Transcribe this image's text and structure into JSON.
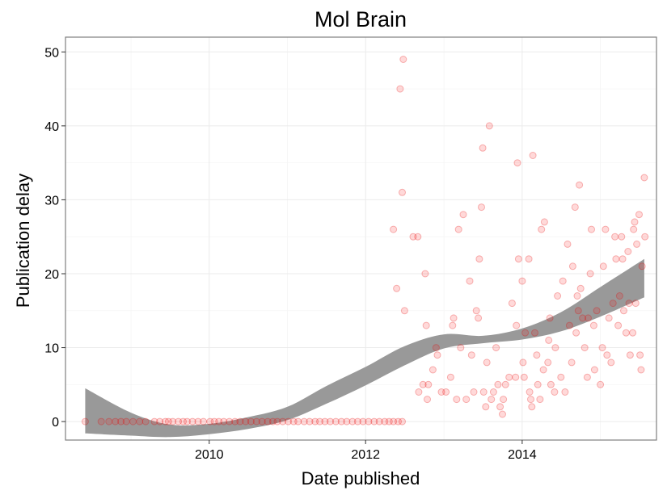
{
  "chart_data": {
    "type": "scatter",
    "title": "Mol Brain",
    "xlabel": "Date published",
    "ylabel": "Publication delay",
    "xlim": [
      "2008-03-01",
      "2015-09-20"
    ],
    "ylim": [
      -2.5,
      52
    ],
    "x_ticks": [
      {
        "date": "2010-01-01",
        "label": "2010"
      },
      {
        "date": "2012-01-01",
        "label": "2012"
      },
      {
        "date": "2014-01-01",
        "label": "2014"
      }
    ],
    "y_ticks": [
      0,
      10,
      20,
      30,
      40,
      50
    ],
    "grid": true,
    "point_color": "#ff0000",
    "band_color": "#999999",
    "series": [
      {
        "type": "scatter",
        "points": [
          [
            "2008-06-01",
            0
          ],
          [
            "2008-08-15",
            0
          ],
          [
            "2008-09-20",
            0
          ],
          [
            "2008-10-20",
            0
          ],
          [
            "2008-11-15",
            0
          ],
          [
            "2008-12-10",
            0
          ],
          [
            "2009-01-10",
            0
          ],
          [
            "2009-02-10",
            0
          ],
          [
            "2009-03-10",
            0
          ],
          [
            "2009-04-20",
            0
          ],
          [
            "2009-05-15",
            0
          ],
          [
            "2009-06-10",
            0
          ],
          [
            "2009-06-25",
            0
          ],
          [
            "2009-07-15",
            0
          ],
          [
            "2009-08-10",
            0
          ],
          [
            "2009-09-01",
            0
          ],
          [
            "2009-09-20",
            0
          ],
          [
            "2009-10-15",
            0
          ],
          [
            "2009-11-10",
            0
          ],
          [
            "2009-12-05",
            0
          ],
          [
            "2010-01-05",
            0
          ],
          [
            "2010-01-25",
            0
          ],
          [
            "2010-02-15",
            0
          ],
          [
            "2010-03-10",
            0
          ],
          [
            "2010-04-05",
            0
          ],
          [
            "2010-05-01",
            0
          ],
          [
            "2010-05-25",
            0
          ],
          [
            "2010-06-20",
            0
          ],
          [
            "2010-07-15",
            0
          ],
          [
            "2010-08-10",
            0
          ],
          [
            "2010-09-05",
            0
          ],
          [
            "2010-10-01",
            0
          ],
          [
            "2010-10-25",
            0
          ],
          [
            "2010-11-15",
            0
          ],
          [
            "2010-12-10",
            0
          ],
          [
            "2011-01-05",
            0
          ],
          [
            "2011-01-30",
            0
          ],
          [
            "2011-02-20",
            0
          ],
          [
            "2011-03-20",
            0
          ],
          [
            "2011-04-15",
            0
          ],
          [
            "2011-05-10",
            0
          ],
          [
            "2011-06-01",
            0
          ],
          [
            "2011-06-25",
            0
          ],
          [
            "2011-07-20",
            0
          ],
          [
            "2011-08-15",
            0
          ],
          [
            "2011-09-10",
            0
          ],
          [
            "2011-10-05",
            0
          ],
          [
            "2011-11-01",
            0
          ],
          [
            "2011-11-25",
            0
          ],
          [
            "2011-12-20",
            0
          ],
          [
            "2012-01-15",
            0
          ],
          [
            "2012-02-10",
            0
          ],
          [
            "2012-03-05",
            0
          ],
          [
            "2012-03-30",
            0
          ],
          [
            "2012-04-20",
            0
          ],
          [
            "2012-05-10",
            0
          ],
          [
            "2012-06-01",
            0
          ],
          [
            "2012-06-20",
            0
          ],
          [
            "2012-05-10",
            26
          ],
          [
            "2012-05-25",
            18
          ],
          [
            "2012-06-10",
            45
          ],
          [
            "2012-06-20",
            31
          ],
          [
            "2012-06-25",
            49
          ],
          [
            "2012-07-01",
            15
          ],
          [
            "2012-08-10",
            25
          ],
          [
            "2012-09-01",
            25
          ],
          [
            "2012-09-05",
            4
          ],
          [
            "2012-09-25",
            5
          ],
          [
            "2012-10-05",
            20
          ],
          [
            "2012-10-10",
            13
          ],
          [
            "2012-10-15",
            3
          ],
          [
            "2012-10-20",
            5
          ],
          [
            "2012-11-10",
            7
          ],
          [
            "2012-11-25",
            10
          ],
          [
            "2012-12-01",
            9
          ],
          [
            "2012-12-20",
            4
          ],
          [
            "2013-01-10",
            4
          ],
          [
            "2013-02-01",
            6
          ],
          [
            "2013-02-10",
            13
          ],
          [
            "2013-02-15",
            14
          ],
          [
            "2013-03-01",
            3
          ],
          [
            "2013-03-10",
            26
          ],
          [
            "2013-03-20",
            10
          ],
          [
            "2013-04-01",
            28
          ],
          [
            "2013-04-15",
            3
          ],
          [
            "2013-05-01",
            19
          ],
          [
            "2013-05-10",
            9
          ],
          [
            "2013-05-20",
            4
          ],
          [
            "2013-06-01",
            15
          ],
          [
            "2013-06-10",
            14
          ],
          [
            "2013-06-15",
            22
          ],
          [
            "2013-06-25",
            29
          ],
          [
            "2013-07-01",
            37
          ],
          [
            "2013-07-05",
            4
          ],
          [
            "2013-07-15",
            2
          ],
          [
            "2013-07-20",
            8
          ],
          [
            "2013-08-01",
            40
          ],
          [
            "2013-08-10",
            3
          ],
          [
            "2013-08-20",
            4
          ],
          [
            "2013-09-01",
            10
          ],
          [
            "2013-09-10",
            5
          ],
          [
            "2013-09-20",
            2
          ],
          [
            "2013-10-01",
            1
          ],
          [
            "2013-10-05",
            3
          ],
          [
            "2013-10-15",
            5
          ],
          [
            "2013-11-01",
            6
          ],
          [
            "2013-11-15",
            16
          ],
          [
            "2013-12-01",
            6
          ],
          [
            "2013-12-05",
            13
          ],
          [
            "2013-12-10",
            35
          ],
          [
            "2013-12-15",
            22
          ],
          [
            "2014-01-01",
            19
          ],
          [
            "2014-01-05",
            8
          ],
          [
            "2014-01-10",
            6
          ],
          [
            "2014-01-15",
            12
          ],
          [
            "2014-02-01",
            22
          ],
          [
            "2014-02-05",
            4
          ],
          [
            "2014-02-10",
            3
          ],
          [
            "2014-02-15",
            2
          ],
          [
            "2014-02-20",
            36
          ],
          [
            "2014-03-01",
            12
          ],
          [
            "2014-03-10",
            9
          ],
          [
            "2014-03-15",
            5
          ],
          [
            "2014-03-25",
            3
          ],
          [
            "2014-04-01",
            26
          ],
          [
            "2014-04-10",
            7
          ],
          [
            "2014-04-15",
            27
          ],
          [
            "2014-05-01",
            8
          ],
          [
            "2014-05-05",
            11
          ],
          [
            "2014-05-10",
            14
          ],
          [
            "2014-05-15",
            5
          ],
          [
            "2014-06-01",
            4
          ],
          [
            "2014-06-05",
            10
          ],
          [
            "2014-06-15",
            17
          ],
          [
            "2014-07-01",
            6
          ],
          [
            "2014-07-10",
            19
          ],
          [
            "2014-07-20",
            4
          ],
          [
            "2014-08-01",
            24
          ],
          [
            "2014-08-10",
            13
          ],
          [
            "2014-08-20",
            8
          ],
          [
            "2014-08-25",
            21
          ],
          [
            "2014-09-05",
            29
          ],
          [
            "2014-09-10",
            12
          ],
          [
            "2014-09-15",
            17
          ],
          [
            "2014-09-20",
            15
          ],
          [
            "2014-09-25",
            32
          ],
          [
            "2014-10-01",
            18
          ],
          [
            "2014-10-10",
            14
          ],
          [
            "2014-10-20",
            10
          ],
          [
            "2014-11-01",
            6
          ],
          [
            "2014-11-05",
            14
          ],
          [
            "2014-11-15",
            20
          ],
          [
            "2014-11-20",
            26
          ],
          [
            "2014-12-01",
            13
          ],
          [
            "2014-12-05",
            7
          ],
          [
            "2014-12-15",
            15
          ],
          [
            "2015-01-01",
            5
          ],
          [
            "2015-01-10",
            10
          ],
          [
            "2015-01-15",
            21
          ],
          [
            "2015-01-25",
            26
          ],
          [
            "2015-02-01",
            9
          ],
          [
            "2015-02-10",
            14
          ],
          [
            "2015-02-20",
            8
          ],
          [
            "2015-03-01",
            16
          ],
          [
            "2015-03-10",
            25
          ],
          [
            "2015-03-15",
            22
          ],
          [
            "2015-03-25",
            13
          ],
          [
            "2015-04-01",
            17
          ],
          [
            "2015-04-10",
            25
          ],
          [
            "2015-04-15",
            22
          ],
          [
            "2015-04-20",
            15
          ],
          [
            "2015-05-01",
            12
          ],
          [
            "2015-05-10",
            23
          ],
          [
            "2015-05-15",
            16
          ],
          [
            "2015-05-20",
            9
          ],
          [
            "2015-06-01",
            12
          ],
          [
            "2015-06-05",
            26
          ],
          [
            "2015-06-10",
            27
          ],
          [
            "2015-06-15",
            16
          ],
          [
            "2015-06-20",
            24
          ],
          [
            "2015-07-01",
            28
          ],
          [
            "2015-07-05",
            9
          ],
          [
            "2015-07-10",
            7
          ],
          [
            "2015-07-15",
            21
          ],
          [
            "2015-07-25",
            33
          ],
          [
            "2015-07-28",
            25
          ]
        ]
      },
      {
        "type": "smooth-band",
        "x": [
          "2008-06-01",
          "2009-01-01",
          "2009-07-01",
          "2010-01-01",
          "2010-07-01",
          "2011-01-01",
          "2011-07-01",
          "2012-01-01",
          "2012-07-01",
          "2013-01-01",
          "2013-07-01",
          "2014-01-01",
          "2014-07-01",
          "2015-01-01",
          "2015-07-25"
        ],
        "lower": [
          -1.6,
          -1.9,
          -2.1,
          -1.7,
          -1.0,
          0.2,
          2.4,
          4.9,
          7.6,
          9.9,
          10.6,
          11.1,
          12.2,
          14.2,
          16.8
        ],
        "upper": [
          4.5,
          1.2,
          -0.4,
          -0.3,
          0.6,
          2.0,
          4.8,
          7.4,
          10.2,
          11.8,
          11.6,
          12.6,
          14.8,
          18.2,
          22.0
        ]
      }
    ]
  }
}
